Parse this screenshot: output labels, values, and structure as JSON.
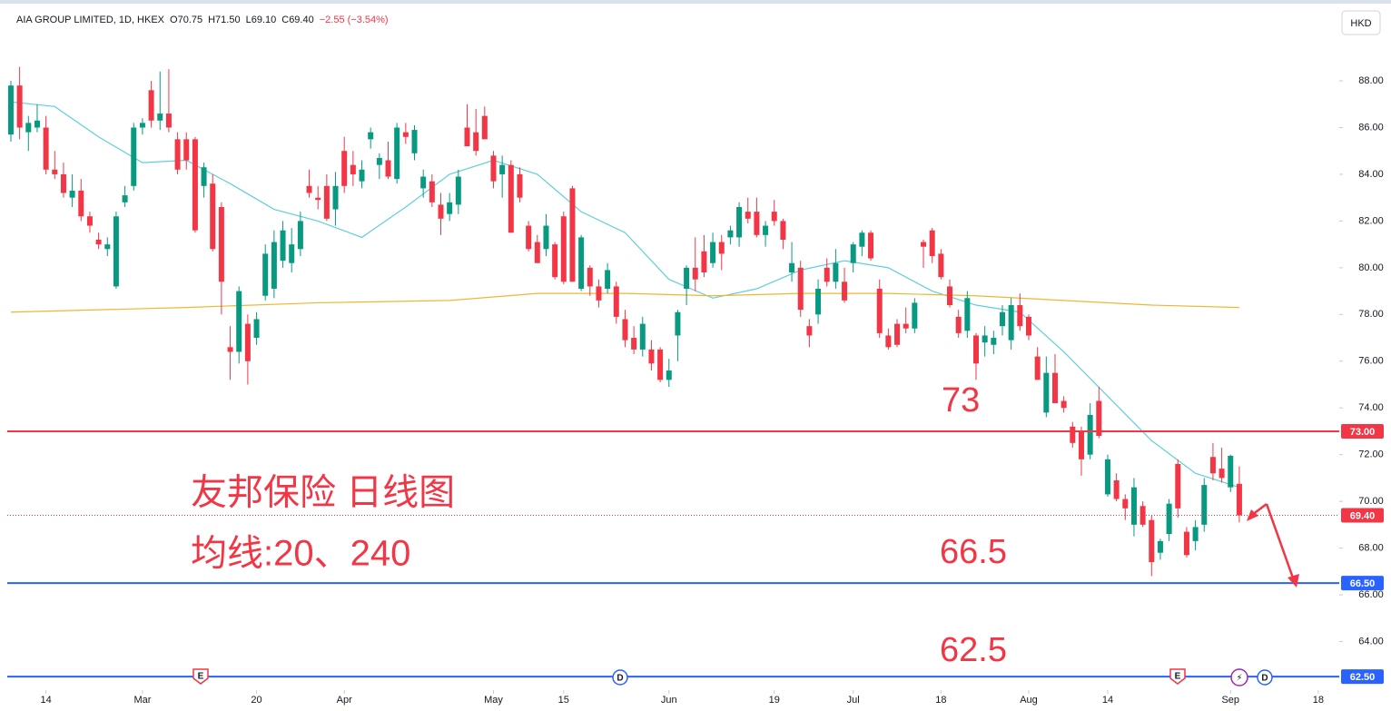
{
  "header": {
    "title": "AIA GROUP LIMITED, 1D, HKEX",
    "items": [
      "O70.75",
      "H71.50",
      "L69.10",
      "C69.40",
      "−2.55 (−3.54%)"
    ],
    "currency": "HKD"
  },
  "chart_data": {
    "type": "candlestick",
    "xlim": [
      -0.41,
      151.39
    ],
    "xticks": [
      {
        "value": 4,
        "label": "14"
      },
      {
        "value": 15,
        "label": "Mar"
      },
      {
        "value": 28,
        "label": "20"
      },
      {
        "value": 38,
        "label": "Apr"
      },
      {
        "value": 55,
        "label": "May"
      },
      {
        "value": 63,
        "label": "15"
      },
      {
        "value": 75,
        "label": "Jun"
      },
      {
        "value": 87,
        "label": "19"
      },
      {
        "value": 96,
        "label": "Jul"
      },
      {
        "value": 106,
        "label": "18"
      },
      {
        "value": 116,
        "label": "Aug"
      },
      {
        "value": 125,
        "label": "14"
      },
      {
        "value": 139,
        "label": "Sep"
      },
      {
        "value": 149,
        "label": "18"
      }
    ],
    "ylim": [
      61.92,
      91.15
    ],
    "yticks": [
      {
        "value": 64,
        "label": "64.00"
      },
      {
        "value": 66,
        "label": "66.00"
      },
      {
        "value": 68,
        "label": "68.00"
      },
      {
        "value": 70,
        "label": "70.00"
      },
      {
        "value": 72,
        "label": "72.00"
      },
      {
        "value": 74,
        "label": "74.00"
      },
      {
        "value": 76,
        "label": "76.00"
      },
      {
        "value": 78,
        "label": "78.00"
      },
      {
        "value": 80,
        "label": "80.00"
      },
      {
        "value": 82,
        "label": "82.00"
      },
      {
        "value": 84,
        "label": "84.00"
      },
      {
        "value": 86,
        "label": "86.00"
      },
      {
        "value": 88,
        "label": "88.00"
      }
    ],
    "up_color": "#089981",
    "down_color": "#f23645",
    "open": [
      85.7,
      87.8,
      85.8,
      86.0,
      86.0,
      84.2,
      84.0,
      83.0,
      83.3,
      82.2,
      81.2,
      80.8,
      79.2,
      82.8,
      83.5,
      86.0,
      87.6,
      86.3,
      86.6,
      85.5,
      85.5,
      85.5,
      83.5,
      83.6,
      82.6,
      76.6,
      76.4,
      77.6,
      77.0,
      78.8,
      79.1,
      80.3,
      80.2,
      80.8,
      83.5,
      83.0,
      83.5,
      82.5,
      85.0,
      84.4,
      83.7,
      85.5,
      84.4,
      84.6,
      83.8,
      85.8,
      84.9,
      83.4,
      83.7,
      82.7,
      82.3,
      82.7,
      86.0,
      85.8,
      86.5,
      84.8,
      84.0,
      84.4,
      84.0,
      81.8,
      81.1,
      80.8,
      81.0,
      82.2,
      83.4,
      79.1,
      80.0,
      79.2,
      79.1,
      79.2,
      77.8,
      77.0,
      76.5,
      76.5,
      76.5,
      75.2,
      77.1,
      79.1,
      80.0,
      80.7,
      80.2,
      81.1,
      81.3,
      81.3,
      82.4,
      82.4,
      81.4,
      82.4,
      82.0,
      79.8,
      80.0,
      77.5,
      78.0,
      80.0,
      79.4,
      79.4,
      80.2,
      80.9,
      81.5,
      79.1,
      77.1,
      77.6,
      77.6,
      77.4,
      81.1,
      81.6,
      80.6,
      79.2,
      77.9,
      77.3,
      77.1,
      76.8,
      76.7,
      77.5,
      76.9,
      78.4,
      77.9,
      76.2,
      73.8,
      75.5,
      74.3,
      73.2,
      73.0,
      72.0,
      74.3,
      70.3,
      70.9,
      70.1,
      69.0,
      69.8,
      69.2,
      67.8,
      68.6,
      71.6,
      68.7,
      68.3,
      69.0,
      71.9,
      71.4,
      70.6,
      70.75
    ],
    "high": [
      88.0,
      88.6,
      86.5,
      87.0,
      86.5,
      85.0,
      84.5,
      84.0,
      83.8,
      82.4,
      81.5,
      81.3,
      82.4,
      83.5,
      86.2,
      86.4,
      88.0,
      88.4,
      88.5,
      85.8,
      85.8,
      85.6,
      84.5,
      84.0,
      82.8,
      77.5,
      79.2,
      78.0,
      78.1,
      81.0,
      81.6,
      82.0,
      81.7,
      82.4,
      84.2,
      83.5,
      84.0,
      84.1,
      85.6,
      85.0,
      84.6,
      86.0,
      84.9,
      85.4,
      86.2,
      86.2,
      86.1,
      84.2,
      84.0,
      83.2,
      83.2,
      84.2,
      87.0,
      86.8,
      86.9,
      85.0,
      84.8,
      84.6,
      84.3,
      82.0,
      81.4,
      82.3,
      81.1,
      82.4,
      83.5,
      81.4,
      80.1,
      79.5,
      80.2,
      79.4,
      78.2,
      77.5,
      77.9,
      76.9,
      76.6,
      76.1,
      78.2,
      80.1,
      81.3,
      81.4,
      81.5,
      81.4,
      81.8,
      82.8,
      83.0,
      83.0,
      82.0,
      82.9,
      82.1,
      81.1,
      80.3,
      77.8,
      79.5,
      80.4,
      80.8,
      80.0,
      81.1,
      81.6,
      81.6,
      79.5,
      77.4,
      77.8,
      78.3,
      78.7,
      81.2,
      81.7,
      80.8,
      79.5,
      78.2,
      79.0,
      77.2,
      77.5,
      77.3,
      78.4,
      78.7,
      78.9,
      78.0,
      76.6,
      76.2,
      76.3,
      74.5,
      73.4,
      73.2,
      74.2,
      74.9,
      72.0,
      71.2,
      70.3,
      71.0,
      70.0,
      69.4,
      68.4,
      70.1,
      71.8,
      68.9,
      69.2,
      71.0,
      72.5,
      72.3,
      72.0,
      71.5
    ],
    "low": [
      85.4,
      85.5,
      85.0,
      85.8,
      84.0,
      83.8,
      83.0,
      82.6,
      82.0,
      81.5,
      80.8,
      80.5,
      79.1,
      82.6,
      83.3,
      85.7,
      86.0,
      85.9,
      85.8,
      84.0,
      84.2,
      81.5,
      83.0,
      80.7,
      78.0,
      75.2,
      75.9,
      75.0,
      76.7,
      78.6,
      78.7,
      80.0,
      79.8,
      80.5,
      83.0,
      82.5,
      82.0,
      81.8,
      83.2,
      83.5,
      83.4,
      85.1,
      83.8,
      83.8,
      83.6,
      85.3,
      84.6,
      83.0,
      82.6,
      81.4,
      82.0,
      82.3,
      85.2,
      84.8,
      85.5,
      83.4,
      83.0,
      81.5,
      82.8,
      80.7,
      80.2,
      80.5,
      79.5,
      79.3,
      79.4,
      79.0,
      78.8,
      78.3,
      78.9,
      77.6,
      76.6,
      76.3,
      76.2,
      75.6,
      75.1,
      74.9,
      76.0,
      78.4,
      79.0,
      79.6,
      80.0,
      79.9,
      81.0,
      80.9,
      81.9,
      81.3,
      80.9,
      81.8,
      80.8,
      79.4,
      77.9,
      76.6,
      77.6,
      79.2,
      79.1,
      78.5,
      79.8,
      80.5,
      80.3,
      77.0,
      76.5,
      76.6,
      77.2,
      77.2,
      80.0,
      80.2,
      79.5,
      78.3,
      77.0,
      77.0,
      75.2,
      76.2,
      76.3,
      77.1,
      76.5,
      77.3,
      76.9,
      75.2,
      73.6,
      74.2,
      73.8,
      72.3,
      71.1,
      71.8,
      72.7,
      70.2,
      70.0,
      69.2,
      68.5,
      68.9,
      66.8,
      67.5,
      68.3,
      69.3,
      67.6,
      67.9,
      68.7,
      70.9,
      70.8,
      70.4,
      69.1
    ],
    "close": [
      87.8,
      86.0,
      86.2,
      86.3,
      84.2,
      84.0,
      83.2,
      83.3,
      82.2,
      81.8,
      81.0,
      81.0,
      82.2,
      83.1,
      86.0,
      86.2,
      86.3,
      86.6,
      86.0,
      84.2,
      84.6,
      81.6,
      84.3,
      80.8,
      79.4,
      76.4,
      79.0,
      76.0,
      77.8,
      80.6,
      81.1,
      81.6,
      81.0,
      82.0,
      83.2,
      82.9,
      82.1,
      83.5,
      83.5,
      84.0,
      84.2,
      85.8,
      84.7,
      83.9,
      86.0,
      85.6,
      85.9,
      83.9,
      82.8,
      82.1,
      82.8,
      83.9,
      85.2,
      85.0,
      85.5,
      83.7,
      84.4,
      81.5,
      83.0,
      80.8,
      80.2,
      81.8,
      79.6,
      79.4,
      79.4,
      81.3,
      79.2,
      78.6,
      79.9,
      77.9,
      76.9,
      76.5,
      77.6,
      75.9,
      75.2,
      75.6,
      78.1,
      80.0,
      79.5,
      79.8,
      81.1,
      80.6,
      81.6,
      82.6,
      82.1,
      81.4,
      81.8,
      82.0,
      81.2,
      80.2,
      78.2,
      77.1,
      79.1,
      79.4,
      80.2,
      78.6,
      81.0,
      81.5,
      80.4,
      77.2,
      76.6,
      76.7,
      77.4,
      78.5,
      80.9,
      80.5,
      79.6,
      78.4,
      77.2,
      78.7,
      75.9,
      77.1,
      77.0,
      78.1,
      78.4,
      77.5,
      77.1,
      75.2,
      75.5,
      74.2,
      74.0,
      72.5,
      71.8,
      73.7,
      72.8,
      71.8,
      70.1,
      69.7,
      70.6,
      69.0,
      67.4,
      68.3,
      69.9,
      69.7,
      67.7,
      68.9,
      70.7,
      71.2,
      71.0,
      71.95,
      69.4
    ],
    "series": [
      {
        "color": "#5fcfdc",
        "x": [
          0,
          5,
          10,
          15,
          20,
          25,
          30,
          35,
          40,
          45,
          50,
          55,
          60,
          65,
          70,
          75,
          80,
          85,
          90,
          95,
          100,
          105,
          110,
          115,
          120,
          125,
          130,
          135,
          140
        ],
        "values": [
          87.1,
          86.9,
          85.6,
          84.5,
          84.6,
          83.6,
          82.5,
          82.0,
          81.3,
          82.6,
          84.0,
          84.6,
          84.0,
          82.4,
          81.5,
          79.5,
          78.7,
          79.1,
          79.9,
          80.3,
          80.0,
          79.0,
          78.4,
          78.1,
          76.4,
          74.5,
          72.6,
          71.2,
          70.6
        ]
      },
      {
        "color": "#f2b632",
        "x": [
          0,
          20,
          35,
          50,
          60,
          70,
          80,
          90,
          100,
          110,
          120,
          130,
          140
        ],
        "values": [
          78.1,
          78.3,
          78.5,
          78.6,
          78.9,
          78.9,
          78.8,
          78.9,
          78.9,
          78.8,
          78.6,
          78.4,
          78.3
        ]
      }
    ],
    "levels": [
      {
        "value": 73,
        "label": "73.00",
        "color": "#f23645"
      },
      {
        "value": 66.5,
        "label": "66.50",
        "color": "#2962ff"
      },
      {
        "value": 62.5,
        "label": "62.50",
        "color": "#2962ff"
      }
    ],
    "last_price": {
      "value": 69.4,
      "label": "69.40",
      "color": "#f23645"
    },
    "annotations": [
      "73",
      "66.5",
      "62.5",
      "友邦保险 日线图",
      "均线:20、240"
    ],
    "events": [
      "E",
      "D",
      "E",
      "⚡",
      "D"
    ]
  }
}
